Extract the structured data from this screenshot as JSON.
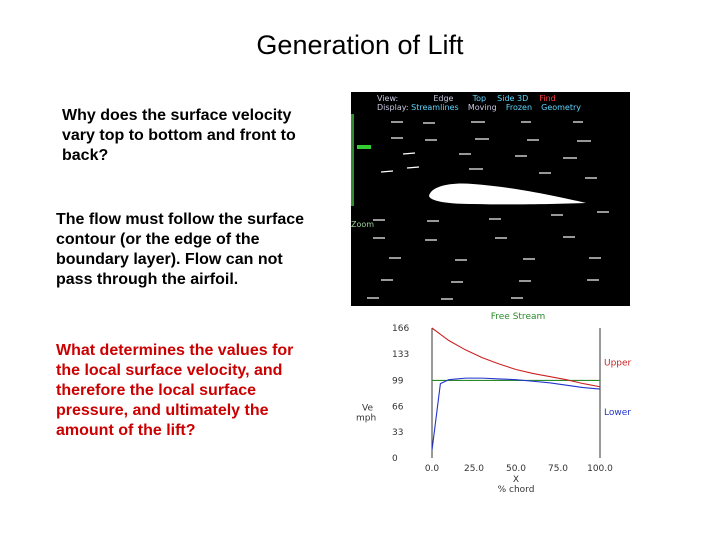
{
  "title": "Generation of  Lift",
  "question1": "Why does the surface velocity\nvary top to bottom and front to\nback?",
  "answer1": "The flow must follow the surface\ncontour (or the edge of the\nboundary layer). Flow can not\npass through the airfoil.",
  "question2": "What  determines the values for\nthe local surface velocity, and\ntherefore the local surface\npressure, and ultimately the\namount of the lift?",
  "simulator": {
    "menu_row1": {
      "label": "View:",
      "edge": "Edge",
      "top": "Top",
      "side3d": "Side 3D",
      "find": "Find"
    },
    "menu_row2": {
      "label": "Display:",
      "streamlines": "Streamlines",
      "moving": "Moving",
      "frozen": "Frozen",
      "geometry": "Geometry"
    },
    "zoom_label": "Zoom"
  },
  "chart_data": {
    "type": "line",
    "title": "",
    "xlabel": "X\n% chord",
    "ylabel": "Ve\nmph",
    "x_ticks": [
      "0.0",
      "25.0",
      "50.0",
      "75.0",
      "100.0"
    ],
    "y_ticks": [
      "0",
      "33",
      "66",
      "99",
      "133",
      "166"
    ],
    "xlim": [
      0,
      100
    ],
    "ylim": [
      0,
      166
    ],
    "x": [
      0,
      5,
      10,
      20,
      30,
      40,
      50,
      60,
      70,
      80,
      90,
      100
    ],
    "series": [
      {
        "name": "Free Stream",
        "color": "#2a8a2a",
        "values": [
          99,
          99,
          99,
          99,
          99,
          99,
          99,
          99,
          99,
          99,
          99,
          99
        ]
      },
      {
        "name": "Upper",
        "color": "#cc2222",
        "values": [
          166,
          158,
          150,
          138,
          128,
          120,
          113,
          108,
          104,
          100,
          95,
          91
        ]
      },
      {
        "name": "Lower",
        "color": "#2233cc",
        "values": [
          10,
          95,
          100,
          102,
          102,
          101,
          100,
          98,
          96,
          93,
          90,
          88
        ]
      }
    ],
    "legend_placement": "right"
  }
}
